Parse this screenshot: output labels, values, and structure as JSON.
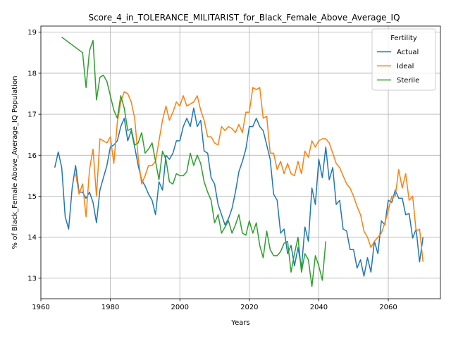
{
  "chart_data": {
    "type": "line",
    "title": "Score_4_in_TOLERANCE_MILITARIST_for_Black_Female_Above_Average_IQ",
    "xlabel": "Years",
    "ylabel": "% of Black_Female Above_Average_IQ Population",
    "xlim": [
      1960,
      2075
    ],
    "ylim": [
      12.5,
      19.15
    ],
    "xticks": [
      1960,
      1980,
      2000,
      2020,
      2040,
      2060
    ],
    "yticks": [
      13,
      14,
      15,
      16,
      17,
      18,
      19
    ],
    "grid": true,
    "legend": {
      "title": "Fertility",
      "placement": "top-right"
    },
    "series": [
      {
        "name": "Actual",
        "color": "#1f77b4",
        "points": [
          [
            1964,
            15.7
          ],
          [
            1965,
            16.08
          ],
          [
            1966,
            15.7
          ],
          [
            1967,
            14.5
          ],
          [
            1968,
            14.2
          ],
          [
            1969,
            15.2
          ],
          [
            1970,
            15.75
          ],
          [
            1971,
            15.1
          ],
          [
            1972,
            15.1
          ],
          [
            1973,
            14.95
          ],
          [
            1974,
            15.1
          ],
          [
            1975,
            14.85
          ],
          [
            1976,
            14.35
          ],
          [
            1977,
            15.15
          ],
          [
            1978,
            15.45
          ],
          [
            1979,
            15.75
          ],
          [
            1980,
            16.2
          ],
          [
            1981,
            16.25
          ],
          [
            1982,
            16.35
          ],
          [
            1983,
            16.7
          ],
          [
            1984,
            16.9
          ],
          [
            1985,
            16.35
          ],
          [
            1986,
            16.6
          ],
          [
            1987,
            16.2
          ],
          [
            1988,
            15.75
          ],
          [
            1989,
            15.4
          ],
          [
            1990,
            15.25
          ],
          [
            1991,
            15.05
          ],
          [
            1992,
            14.9
          ],
          [
            1993,
            14.55
          ],
          [
            1994,
            15.35
          ],
          [
            1995,
            15.15
          ],
          [
            1996,
            16.0
          ],
          [
            1997,
            15.9
          ],
          [
            1998,
            16.05
          ],
          [
            1999,
            16.35
          ],
          [
            2000,
            16.35
          ],
          [
            2001,
            16.7
          ],
          [
            2002,
            16.9
          ],
          [
            2003,
            16.7
          ],
          [
            2004,
            17.15
          ],
          [
            2005,
            16.7
          ],
          [
            2006,
            16.85
          ],
          [
            2007,
            16.1
          ],
          [
            2008,
            16.05
          ],
          [
            2009,
            15.45
          ],
          [
            2010,
            15.3
          ],
          [
            2011,
            14.8
          ],
          [
            2012,
            14.55
          ],
          [
            2013,
            14.3
          ],
          [
            2014,
            14.45
          ],
          [
            2015,
            14.7
          ],
          [
            2016,
            15.1
          ],
          [
            2017,
            15.6
          ],
          [
            2018,
            15.85
          ],
          [
            2019,
            16.15
          ],
          [
            2020,
            16.7
          ],
          [
            2021,
            16.7
          ],
          [
            2022,
            16.9
          ],
          [
            2023,
            16.7
          ],
          [
            2024,
            16.6
          ],
          [
            2025,
            16.25
          ],
          [
            2026,
            15.9
          ],
          [
            2027,
            15.05
          ],
          [
            2028,
            14.9
          ],
          [
            2029,
            14.1
          ],
          [
            2030,
            14.2
          ],
          [
            2031,
            13.6
          ],
          [
            2032,
            13.8
          ],
          [
            2033,
            13.3
          ],
          [
            2034,
            13.75
          ],
          [
            2035,
            13.25
          ],
          [
            2036,
            14.25
          ],
          [
            2037,
            13.9
          ],
          [
            2038,
            15.2
          ],
          [
            2039,
            14.8
          ],
          [
            2040,
            15.9
          ],
          [
            2041,
            15.45
          ],
          [
            2042,
            16.2
          ],
          [
            2043,
            15.4
          ],
          [
            2044,
            15.7
          ],
          [
            2045,
            14.8
          ],
          [
            2046,
            14.9
          ],
          [
            2047,
            14.2
          ],
          [
            2048,
            14.15
          ],
          [
            2049,
            13.7
          ],
          [
            2050,
            13.7
          ],
          [
            2051,
            13.25
          ],
          [
            2052,
            13.45
          ],
          [
            2053,
            13.05
          ],
          [
            2054,
            13.5
          ],
          [
            2055,
            13.15
          ],
          [
            2056,
            13.9
          ],
          [
            2057,
            13.6
          ],
          [
            2058,
            14.4
          ],
          [
            2059,
            14.3
          ],
          [
            2060,
            14.9
          ],
          [
            2061,
            14.85
          ],
          [
            2062,
            15.15
          ],
          [
            2063,
            14.95
          ],
          [
            2064,
            14.95
          ],
          [
            2065,
            14.55
          ],
          [
            2066,
            14.58
          ],
          [
            2067,
            13.98
          ],
          [
            2068,
            14.2
          ],
          [
            2069,
            13.4
          ],
          [
            2070,
            14.0
          ]
        ]
      },
      {
        "name": "Ideal",
        "color": "#ff7f0e",
        "points": [
          [
            1970,
            15.55
          ],
          [
            1971,
            15.05
          ],
          [
            1972,
            15.3
          ],
          [
            1973,
            14.5
          ],
          [
            1974,
            15.65
          ],
          [
            1975,
            16.15
          ],
          [
            1976,
            15.0
          ],
          [
            1977,
            16.4
          ],
          [
            1978,
            16.35
          ],
          [
            1979,
            16.3
          ],
          [
            1980,
            16.45
          ],
          [
            1981,
            15.8
          ],
          [
            1982,
            16.8
          ],
          [
            1983,
            17.3
          ],
          [
            1984,
            17.55
          ],
          [
            1985,
            17.5
          ],
          [
            1986,
            17.3
          ],
          [
            1987,
            16.9
          ],
          [
            1988,
            15.95
          ],
          [
            1989,
            15.3
          ],
          [
            1990,
            15.5
          ],
          [
            1991,
            15.75
          ],
          [
            1992,
            15.75
          ],
          [
            1993,
            15.85
          ],
          [
            1994,
            16.35
          ],
          [
            1995,
            16.85
          ],
          [
            1996,
            17.2
          ],
          [
            1997,
            16.85
          ],
          [
            1998,
            17.05
          ],
          [
            1999,
            17.3
          ],
          [
            2000,
            17.2
          ],
          [
            2001,
            17.45
          ],
          [
            2002,
            17.2
          ],
          [
            2003,
            17.25
          ],
          [
            2004,
            17.3
          ],
          [
            2005,
            17.45
          ],
          [
            2006,
            17.1
          ],
          [
            2007,
            16.85
          ],
          [
            2008,
            16.45
          ],
          [
            2009,
            16.45
          ],
          [
            2010,
            16.3
          ],
          [
            2011,
            16.25
          ],
          [
            2012,
            16.7
          ],
          [
            2013,
            16.6
          ],
          [
            2014,
            16.7
          ],
          [
            2015,
            16.65
          ],
          [
            2016,
            16.55
          ],
          [
            2017,
            16.75
          ],
          [
            2018,
            16.55
          ],
          [
            2019,
            17.05
          ],
          [
            2020,
            17.05
          ],
          [
            2021,
            17.65
          ],
          [
            2022,
            17.6
          ],
          [
            2023,
            17.65
          ],
          [
            2024,
            16.9
          ],
          [
            2025,
            16.95
          ],
          [
            2026,
            16.05
          ],
          [
            2027,
            16.05
          ],
          [
            2028,
            15.65
          ],
          [
            2029,
            15.85
          ],
          [
            2030,
            15.55
          ],
          [
            2031,
            15.8
          ],
          [
            2032,
            15.55
          ],
          [
            2033,
            15.5
          ],
          [
            2034,
            15.85
          ],
          [
            2035,
            15.55
          ],
          [
            2036,
            16.1
          ],
          [
            2037,
            15.95
          ],
          [
            2038,
            16.35
          ],
          [
            2039,
            16.2
          ],
          [
            2040,
            16.35
          ],
          [
            2041,
            16.4
          ],
          [
            2042,
            16.4
          ],
          [
            2043,
            16.3
          ],
          [
            2044,
            16.05
          ],
          [
            2045,
            15.8
          ],
          [
            2046,
            15.7
          ],
          [
            2047,
            15.5
          ],
          [
            2048,
            15.3
          ],
          [
            2049,
            15.2
          ],
          [
            2050,
            15.0
          ],
          [
            2051,
            14.75
          ],
          [
            2052,
            14.55
          ],
          [
            2053,
            14.15
          ],
          [
            2054,
            14.0
          ],
          [
            2055,
            13.75
          ],
          [
            2056,
            13.9
          ],
          [
            2057,
            14.0
          ],
          [
            2058,
            14.1
          ],
          [
            2059,
            14.35
          ],
          [
            2060,
            14.65
          ],
          [
            2061,
            15.0
          ],
          [
            2062,
            15.0
          ],
          [
            2063,
            15.65
          ],
          [
            2064,
            15.2
          ],
          [
            2065,
            15.55
          ],
          [
            2066,
            14.9
          ],
          [
            2067,
            15.0
          ],
          [
            2068,
            14.15
          ],
          [
            2069,
            14.2
          ],
          [
            2070,
            13.4
          ]
        ]
      },
      {
        "name": "Sterile",
        "color": "#2ca02c",
        "points": [
          [
            1966,
            18.88
          ],
          [
            1972,
            18.5
          ],
          [
            1973,
            17.65
          ],
          [
            1974,
            18.55
          ],
          [
            1975,
            18.8
          ],
          [
            1976,
            17.35
          ],
          [
            1977,
            17.9
          ],
          [
            1978,
            17.95
          ],
          [
            1979,
            17.8
          ],
          [
            1980,
            17.45
          ],
          [
            1981,
            17.1
          ],
          [
            1982,
            16.9
          ],
          [
            1983,
            17.45
          ],
          [
            1984,
            17.15
          ],
          [
            1985,
            16.6
          ],
          [
            1986,
            16.65
          ],
          [
            1987,
            16.25
          ],
          [
            1988,
            16.3
          ],
          [
            1989,
            16.55
          ],
          [
            1990,
            16.05
          ],
          [
            1991,
            16.15
          ],
          [
            1992,
            16.3
          ],
          [
            1993,
            15.85
          ],
          [
            1994,
            15.4
          ],
          [
            1995,
            16.1
          ],
          [
            1996,
            15.9
          ],
          [
            1997,
            15.35
          ],
          [
            1998,
            15.3
          ],
          [
            1999,
            15.55
          ],
          [
            2000,
            15.5
          ],
          [
            2001,
            15.5
          ],
          [
            2002,
            15.6
          ],
          [
            2003,
            16.05
          ],
          [
            2004,
            15.75
          ],
          [
            2005,
            16.0
          ],
          [
            2006,
            15.8
          ],
          [
            2007,
            15.35
          ],
          [
            2008,
            15.1
          ],
          [
            2009,
            14.9
          ],
          [
            2010,
            14.35
          ],
          [
            2011,
            14.55
          ],
          [
            2012,
            14.1
          ],
          [
            2013,
            14.25
          ],
          [
            2014,
            14.4
          ],
          [
            2015,
            14.1
          ],
          [
            2016,
            14.3
          ],
          [
            2017,
            14.55
          ],
          [
            2018,
            14.1
          ],
          [
            2019,
            14.05
          ],
          [
            2020,
            14.4
          ],
          [
            2021,
            14.1
          ],
          [
            2022,
            14.35
          ],
          [
            2023,
            13.8
          ],
          [
            2024,
            13.5
          ],
          [
            2025,
            14.15
          ],
          [
            2026,
            13.7
          ],
          [
            2027,
            13.55
          ],
          [
            2028,
            13.55
          ],
          [
            2029,
            13.65
          ],
          [
            2030,
            13.85
          ],
          [
            2031,
            13.9
          ],
          [
            2032,
            13.15
          ],
          [
            2033,
            13.6
          ],
          [
            2034,
            14.0
          ],
          [
            2035,
            13.15
          ],
          [
            2036,
            13.6
          ],
          [
            2037,
            13.45
          ],
          [
            2038,
            12.8
          ],
          [
            2039,
            13.55
          ],
          [
            2040,
            13.3
          ],
          [
            2041,
            12.95
          ],
          [
            2042,
            13.9
          ]
        ]
      }
    ]
  }
}
